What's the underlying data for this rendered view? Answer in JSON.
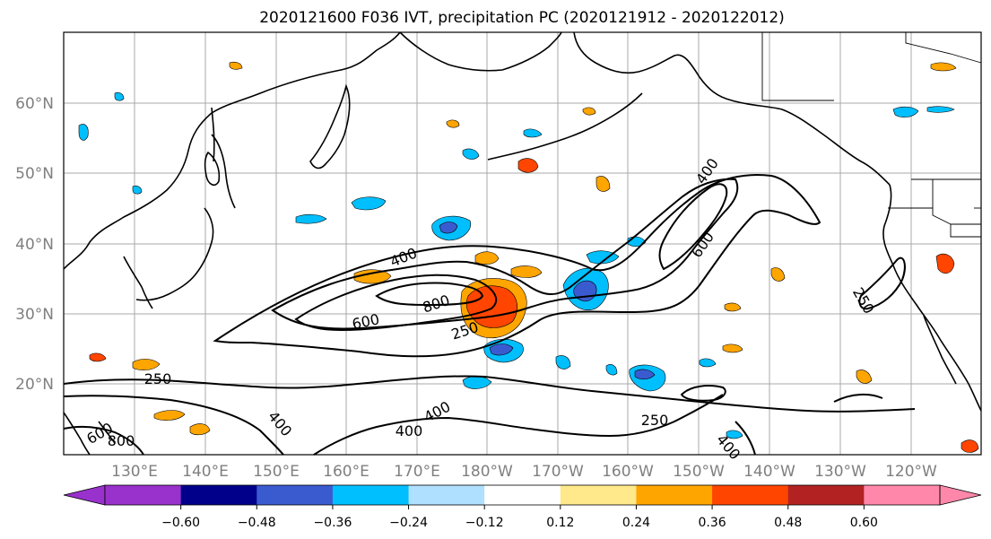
{
  "title": "2020121600 F036 IVT, precipitation PC (2020121912 - 2020122012)",
  "lat_labels": [
    "60°N",
    "50°N",
    "40°N",
    "30°N",
    "20°N"
  ],
  "lon_labels": [
    "130°E",
    "140°E",
    "150°E",
    "160°E",
    "170°E",
    "180°W",
    "170°W",
    "160°W",
    "150°W",
    "140°W",
    "130°W",
    "120°W"
  ],
  "contour_labels": [
    "400",
    "600",
    "800",
    "250",
    "400",
    "600",
    "250",
    "250",
    "250",
    "400",
    "400",
    "400",
    "400",
    "600",
    "800"
  ],
  "colorbar": {
    "ticks": [
      "−0.60",
      "−0.48",
      "−0.36",
      "−0.24",
      "−0.12",
      "0.12",
      "0.24",
      "0.36",
      "0.48",
      "0.60"
    ],
    "under_color": "#9932cc",
    "over_color": "#ff88aa",
    "colors": [
      "#00008b",
      "#3a5bd0",
      "#00bfff",
      "#b0e0ff",
      "#ffffff",
      "#ffe98a",
      "#ffa500",
      "#ff4500",
      "#b22222"
    ]
  },
  "map_data": {
    "type": "filled-contour-map",
    "projection": "plate-carree",
    "lon_range": [
      121,
      246
    ],
    "lat_range": [
      10,
      70
    ],
    "gridlines": true,
    "ivt_contour_levels": [
      250,
      400,
      600,
      800
    ]
  }
}
